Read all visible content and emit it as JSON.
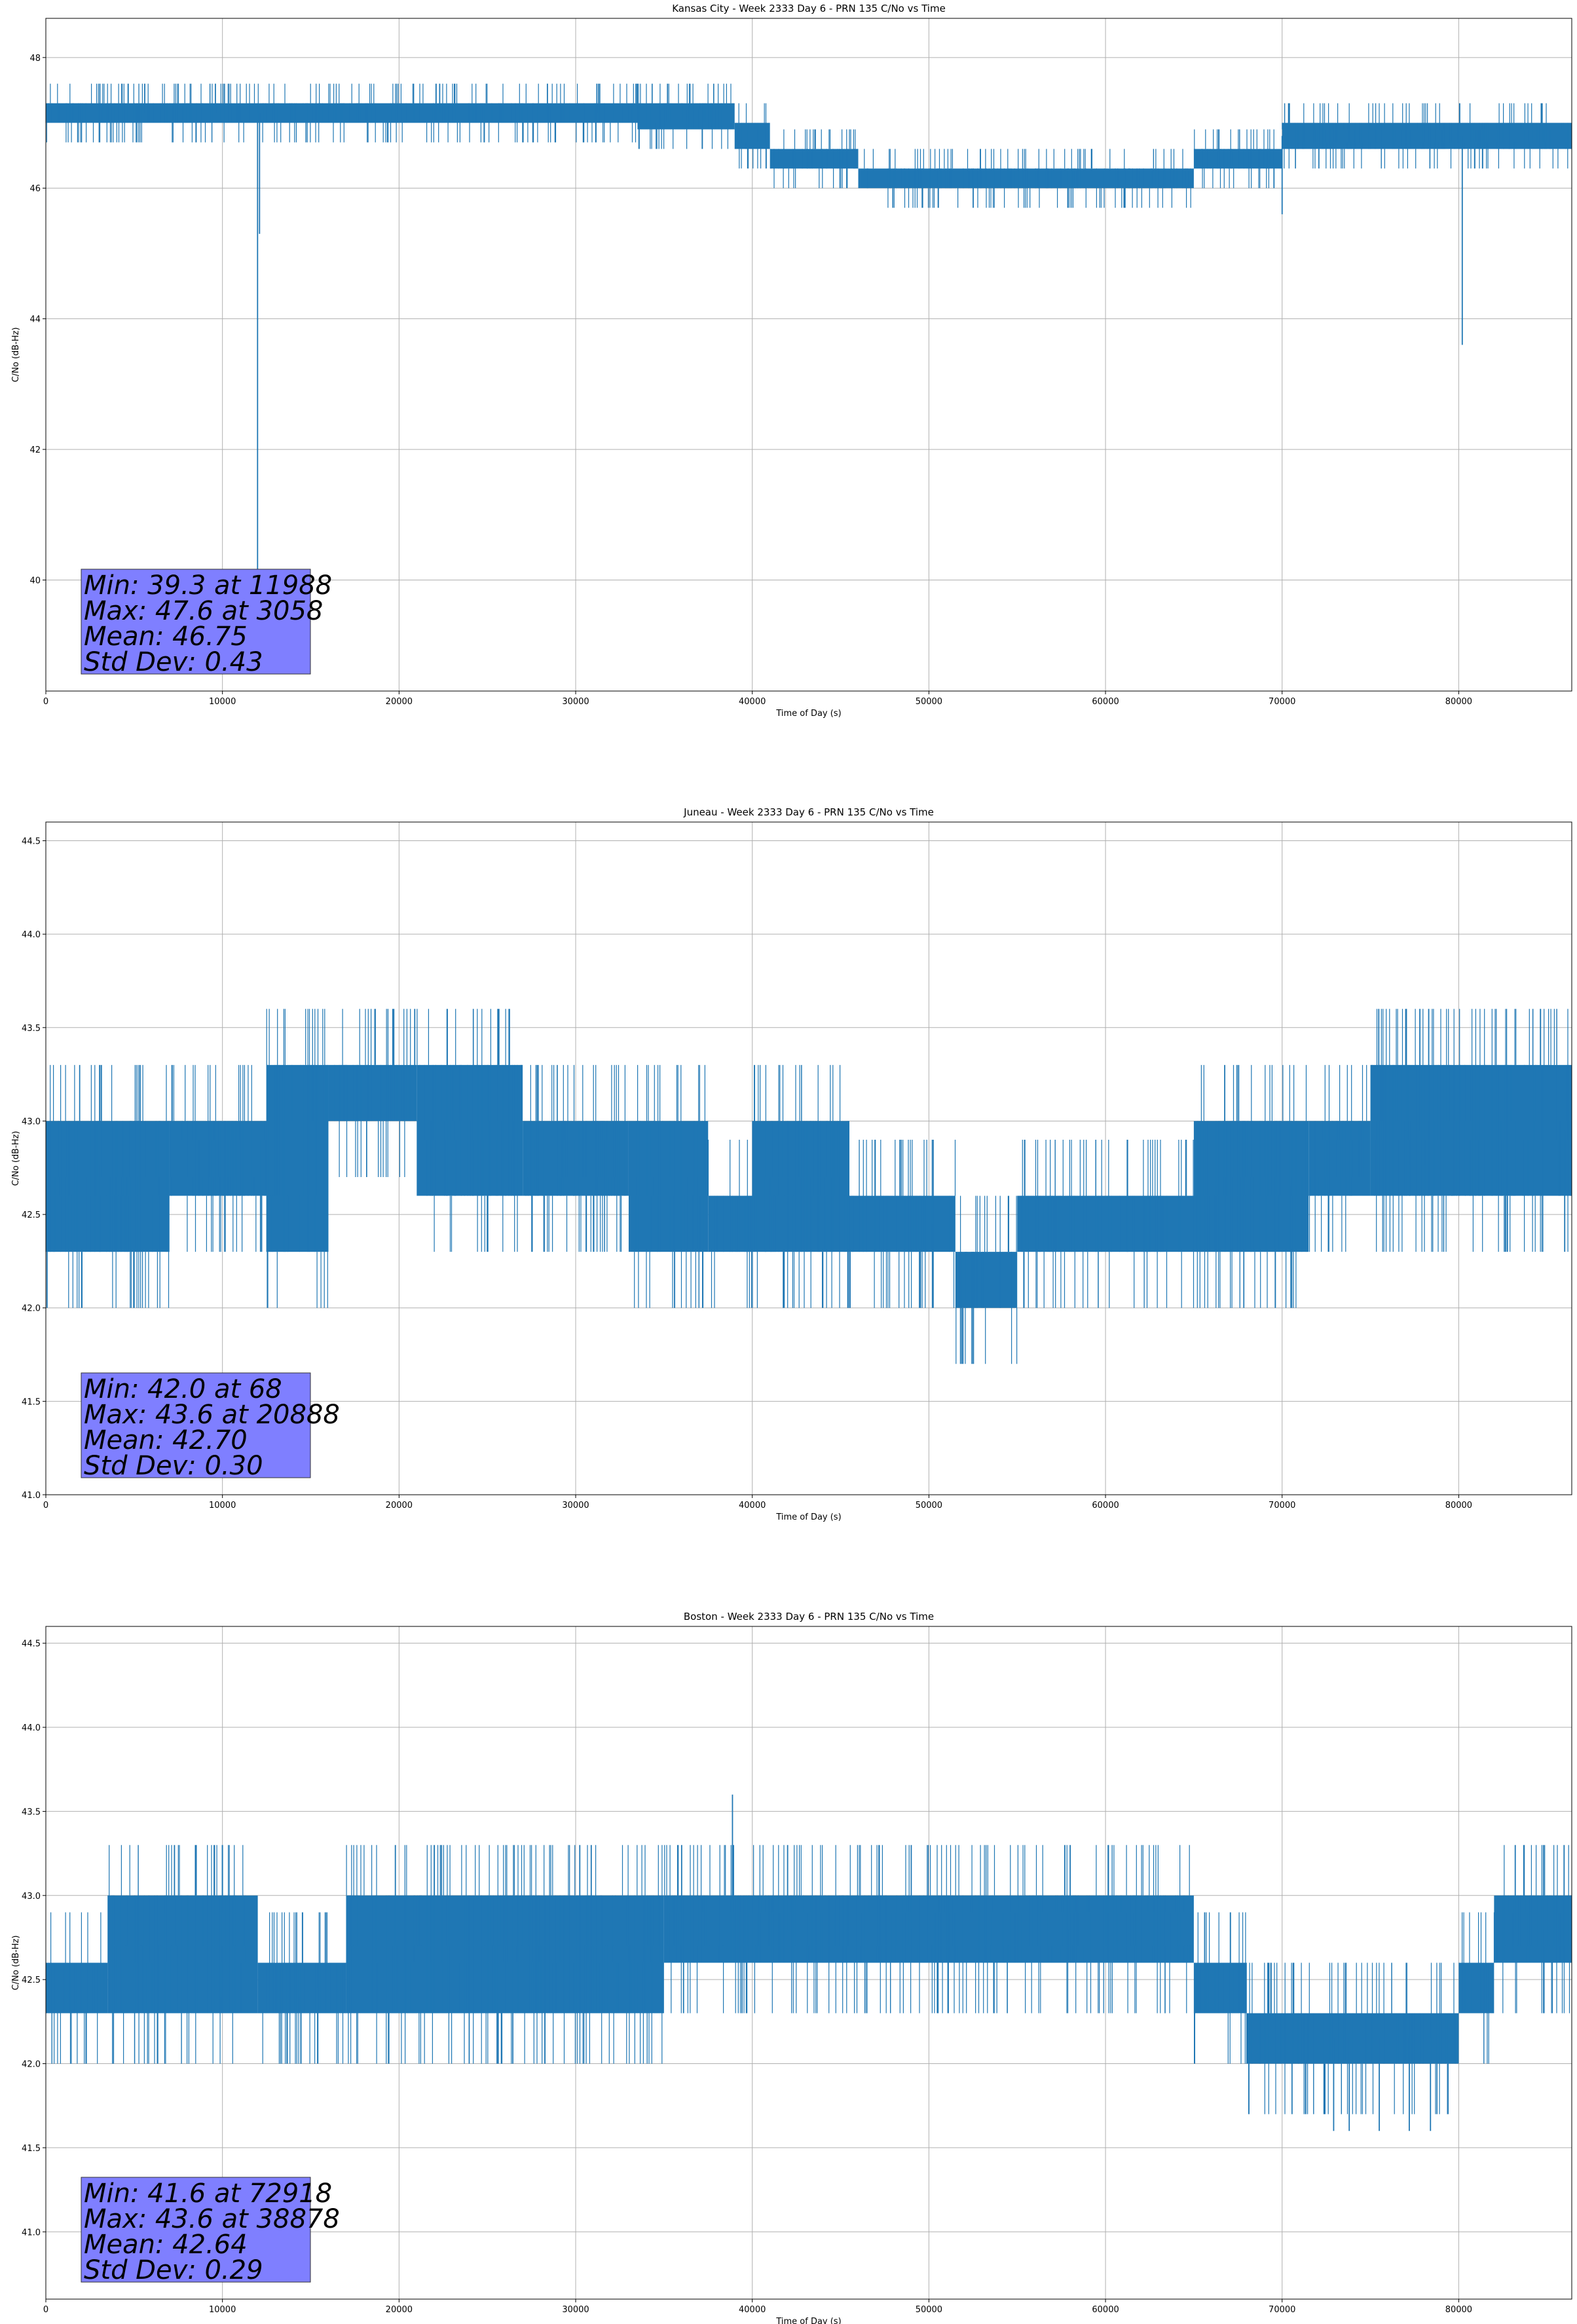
{
  "chart_data": [
    {
      "type": "line",
      "title": "Kansas City - Week 2333 Day 6 - PRN 135 C/No vs Time",
      "xlabel": "Time of Day (s)",
      "ylabel": "C/No (dB-Hz)",
      "xlim": [
        0,
        86400
      ],
      "ylim": [
        38.3,
        48.6
      ],
      "xticks": [
        "0",
        "10000",
        "20000",
        "30000",
        "40000",
        "50000",
        "60000",
        "70000",
        "80000"
      ],
      "yticks": [
        "40",
        "42",
        "44",
        "46",
        "48"
      ],
      "grid": true,
      "color": "#1f77b4",
      "stats": {
        "min": "Min: 39.3 at 11988",
        "max": "Max: 47.6 at 3058",
        "mean": "Mean: 46.75",
        "std": "Std Dev: 0.43"
      },
      "series": [
        {
          "levels": [
            {
              "x": [
                0,
                33500
              ],
              "lo": 47.0,
              "hi": 47.3
            },
            {
              "x": [
                33500,
                39000
              ],
              "lo": 46.9,
              "hi": 47.3
            },
            {
              "x": [
                39000,
                41000
              ],
              "lo": 46.6,
              "hi": 47.0
            },
            {
              "x": [
                41000,
                46000
              ],
              "lo": 46.3,
              "hi": 46.6
            },
            {
              "x": [
                46000,
                65000
              ],
              "lo": 46.0,
              "hi": 46.3
            },
            {
              "x": [
                65000,
                70000
              ],
              "lo": 46.3,
              "hi": 46.6
            },
            {
              "x": [
                70000,
                86400
              ],
              "lo": 46.6,
              "hi": 47.0
            }
          ],
          "spikes": [
            {
              "x": 11988,
              "y": 39.3
            },
            {
              "x": 12100,
              "y": 45.3
            },
            {
              "x": 70000,
              "y": 45.6
            },
            {
              "x": 80200,
              "y": 43.6
            },
            {
              "x": 3058,
              "y": 47.6
            },
            {
              "x": 5600,
              "y": 47.6
            },
            {
              "x": 9600,
              "y": 47.6
            },
            {
              "x": 22300,
              "y": 47.6
            },
            {
              "x": 28400,
              "y": 47.6
            },
            {
              "x": 31200,
              "y": 47.6
            }
          ]
        }
      ]
    },
    {
      "type": "line",
      "title": "Juneau - Week 2333 Day 6 - PRN 135 C/No vs Time",
      "xlabel": "Time of Day (s)",
      "ylabel": "C/No (dB-Hz)",
      "xlim": [
        0,
        86400
      ],
      "ylim": [
        41.0,
        44.6
      ],
      "xticks": [
        "0",
        "10000",
        "20000",
        "30000",
        "40000",
        "50000",
        "60000",
        "70000",
        "80000"
      ],
      "yticks": [
        "41.0",
        "41.5",
        "42.0",
        "42.5",
        "43.0",
        "43.5",
        "44.0",
        "44.5"
      ],
      "grid": true,
      "color": "#1f77b4",
      "stats": {
        "min": "Min: 42.0 at 68",
        "max": "Max: 43.6 at 20888",
        "mean": "Mean: 42.70",
        "std": "Std Dev: 0.30"
      },
      "series": [
        {
          "levels": [
            {
              "x": [
                0,
                7000
              ],
              "lo": 42.3,
              "hi": 43.0
            },
            {
              "x": [
                7000,
                12500
              ],
              "lo": 42.6,
              "hi": 43.0
            },
            {
              "x": [
                12500,
                16000
              ],
              "lo": 42.3,
              "hi": 43.3
            },
            {
              "x": [
                16000,
                21000
              ],
              "lo": 43.0,
              "hi": 43.3
            },
            {
              "x": [
                21000,
                27000
              ],
              "lo": 42.6,
              "hi": 43.3
            },
            {
              "x": [
                27000,
                33000
              ],
              "lo": 42.6,
              "hi": 43.0
            },
            {
              "x": [
                33000,
                37500
              ],
              "lo": 42.3,
              "hi": 43.0
            },
            {
              "x": [
                37500,
                40000
              ],
              "lo": 42.3,
              "hi": 42.6
            },
            {
              "x": [
                40000,
                45500
              ],
              "lo": 42.3,
              "hi": 43.0
            },
            {
              "x": [
                45500,
                51500
              ],
              "lo": 42.3,
              "hi": 42.6
            },
            {
              "x": [
                51500,
                55000
              ],
              "lo": 42.0,
              "hi": 42.3
            },
            {
              "x": [
                55000,
                65000
              ],
              "lo": 42.3,
              "hi": 42.6
            },
            {
              "x": [
                65000,
                71500
              ],
              "lo": 42.3,
              "hi": 43.0
            },
            {
              "x": [
                71500,
                75000
              ],
              "lo": 42.6,
              "hi": 43.0
            },
            {
              "x": [
                75000,
                86400
              ],
              "lo": 42.6,
              "hi": 43.3
            }
          ],
          "spikes": [
            {
              "x": 68,
              "y": 42.0
            },
            {
              "x": 20888,
              "y": 43.6
            },
            {
              "x": 77000,
              "y": 43.6
            },
            {
              "x": 77800,
              "y": 43.6
            },
            {
              "x": 78300,
              "y": 43.6
            },
            {
              "x": 35600,
              "y": 42.0
            },
            {
              "x": 50200,
              "y": 42.0
            },
            {
              "x": 70500,
              "y": 42.0
            },
            {
              "x": 86000,
              "y": 42.3
            }
          ]
        }
      ]
    },
    {
      "type": "line",
      "title": "Boston - Week 2333 Day 6 - PRN 135 C/No vs Time",
      "xlabel": "Time of Day (s)",
      "ylabel": "C/No (dB-Hz)",
      "xlim": [
        0,
        86400
      ],
      "ylim": [
        40.6,
        44.6
      ],
      "xticks": [
        "0",
        "10000",
        "20000",
        "30000",
        "40000",
        "50000",
        "60000",
        "70000",
        "80000"
      ],
      "yticks": [
        "41.0",
        "41.5",
        "42.0",
        "42.5",
        "43.0",
        "43.5",
        "44.0",
        "44.5"
      ],
      "grid": true,
      "color": "#1f77b4",
      "stats": {
        "min": "Min: 41.6 at 72918",
        "max": "Max: 43.6 at 38878",
        "mean": "Mean: 42.64",
        "std": "Std Dev: 0.29"
      },
      "series": [
        {
          "levels": [
            {
              "x": [
                0,
                3500
              ],
              "lo": 42.3,
              "hi": 42.6
            },
            {
              "x": [
                3500,
                12000
              ],
              "lo": 42.3,
              "hi": 43.0
            },
            {
              "x": [
                12000,
                17000
              ],
              "lo": 42.3,
              "hi": 42.6
            },
            {
              "x": [
                17000,
                35000
              ],
              "lo": 42.3,
              "hi": 43.0
            },
            {
              "x": [
                35000,
                65000
              ],
              "lo": 42.6,
              "hi": 43.0
            },
            {
              "x": [
                65000,
                68000
              ],
              "lo": 42.3,
              "hi": 42.6
            },
            {
              "x": [
                68000,
                80000
              ],
              "lo": 42.0,
              "hi": 42.3
            },
            {
              "x": [
                80000,
                82000
              ],
              "lo": 42.3,
              "hi": 42.6
            },
            {
              "x": [
                82000,
                86400
              ],
              "lo": 42.6,
              "hi": 43.0
            }
          ],
          "spikes": [
            {
              "x": 38878,
              "y": 43.6
            },
            {
              "x": 15400,
              "y": 42.0
            },
            {
              "x": 72918,
              "y": 41.6
            },
            {
              "x": 73800,
              "y": 41.6
            },
            {
              "x": 75500,
              "y": 41.6
            },
            {
              "x": 77200,
              "y": 41.6
            },
            {
              "x": 78400,
              "y": 41.6
            },
            {
              "x": 83200,
              "y": 43.3
            },
            {
              "x": 84800,
              "y": 43.3
            },
            {
              "x": 36000,
              "y": 43.3
            },
            {
              "x": 42000,
              "y": 43.3
            },
            {
              "x": 49000,
              "y": 43.3
            },
            {
              "x": 58000,
              "y": 43.3
            }
          ]
        }
      ]
    }
  ]
}
